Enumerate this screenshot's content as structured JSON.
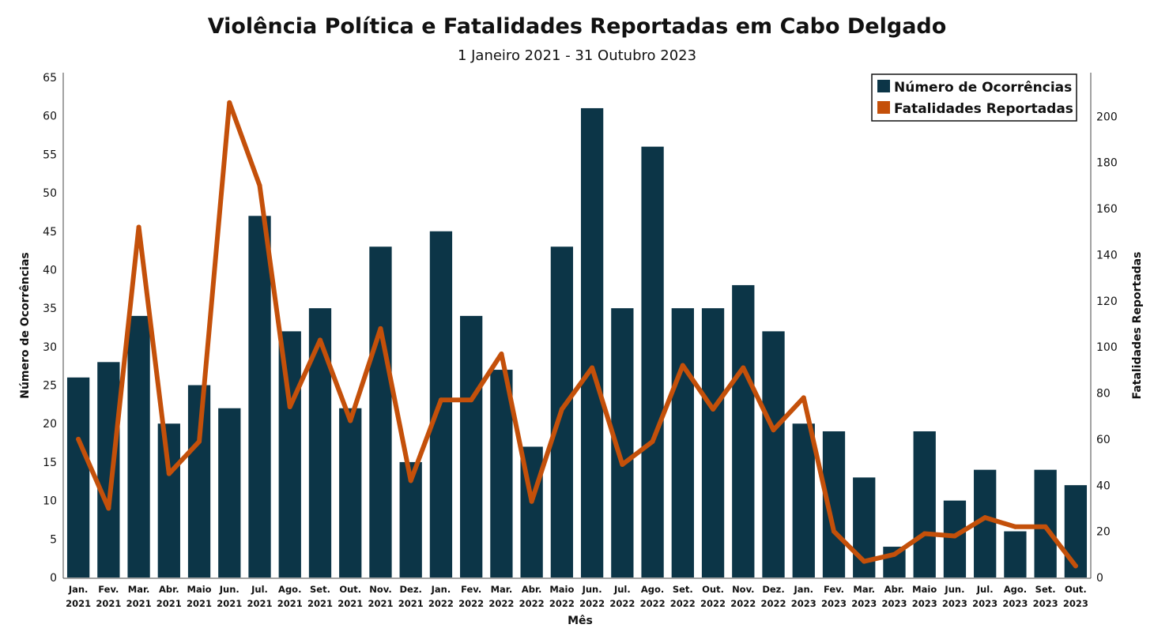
{
  "chart_data": {
    "type": "bar",
    "title": "Violência Política e Fatalidades Reportadas em Cabo Delgado",
    "subtitle": "1 Janeiro 2021 - 31 Outubro 2023",
    "xlabel": "Mês",
    "ylabel_left": "Número de Ocorrências",
    "ylabel_right": "Fatalidades Reportadas",
    "categories": [
      [
        "Jan.",
        "2021"
      ],
      [
        "Fev.",
        "2021"
      ],
      [
        "Mar.",
        "2021"
      ],
      [
        "Abr.",
        "2021"
      ],
      [
        "Maio",
        "2021"
      ],
      [
        "Jun.",
        "2021"
      ],
      [
        "Jul.",
        "2021"
      ],
      [
        "Ago.",
        "2021"
      ],
      [
        "Set.",
        "2021"
      ],
      [
        "Out.",
        "2021"
      ],
      [
        "Nov.",
        "2021"
      ],
      [
        "Dez.",
        "2021"
      ],
      [
        "Jan.",
        "2022"
      ],
      [
        "Fev.",
        "2022"
      ],
      [
        "Mar.",
        "2022"
      ],
      [
        "Abr.",
        "2022"
      ],
      [
        "Maio",
        "2022"
      ],
      [
        "Jun.",
        "2022"
      ],
      [
        "Jul.",
        "2022"
      ],
      [
        "Ago.",
        "2022"
      ],
      [
        "Set.",
        "2022"
      ],
      [
        "Out.",
        "2022"
      ],
      [
        "Nov.",
        "2022"
      ],
      [
        "Dez.",
        "2022"
      ],
      [
        "Jan.",
        "2023"
      ],
      [
        "Fev.",
        "2023"
      ],
      [
        "Mar.",
        "2023"
      ],
      [
        "Abr.",
        "2023"
      ],
      [
        "Maio",
        "2023"
      ],
      [
        "Jun.",
        "2023"
      ],
      [
        "Jul.",
        "2023"
      ],
      [
        "Ago.",
        "2023"
      ],
      [
        "Set.",
        "2023"
      ],
      [
        "Out.",
        "2023"
      ]
    ],
    "series": [
      {
        "name": "Número de Ocorrências",
        "type": "bar",
        "axis": "left",
        "color": "#0c3547",
        "values": [
          26,
          28,
          34,
          20,
          25,
          22,
          47,
          32,
          35,
          22,
          43,
          15,
          45,
          34,
          27,
          17,
          43,
          61,
          35,
          56,
          35,
          35,
          38,
          32,
          20,
          19,
          13,
          4,
          19,
          10,
          14,
          6,
          14,
          12
        ]
      },
      {
        "name": "Fatalidades Reportadas",
        "type": "line",
        "axis": "right",
        "color": "#c4500a",
        "values": [
          60,
          30,
          152,
          45,
          59,
          206,
          170,
          74,
          103,
          68,
          108,
          42,
          77,
          77,
          97,
          33,
          73,
          91,
          49,
          59,
          92,
          73,
          91,
          64,
          78,
          20,
          7,
          10,
          19,
          18,
          26,
          22,
          22,
          5
        ]
      }
    ],
    "ylim_left": [
      0,
      65
    ],
    "yticks_left": [
      0,
      5,
      10,
      15,
      20,
      25,
      30,
      35,
      40,
      45,
      50,
      55,
      60,
      65
    ],
    "ylim_right": [
      0,
      220
    ],
    "yticks_right": [
      0,
      20,
      40,
      60,
      80,
      100,
      120,
      140,
      160,
      180,
      200
    ],
    "legend_position": "top-right",
    "grid": false
  }
}
